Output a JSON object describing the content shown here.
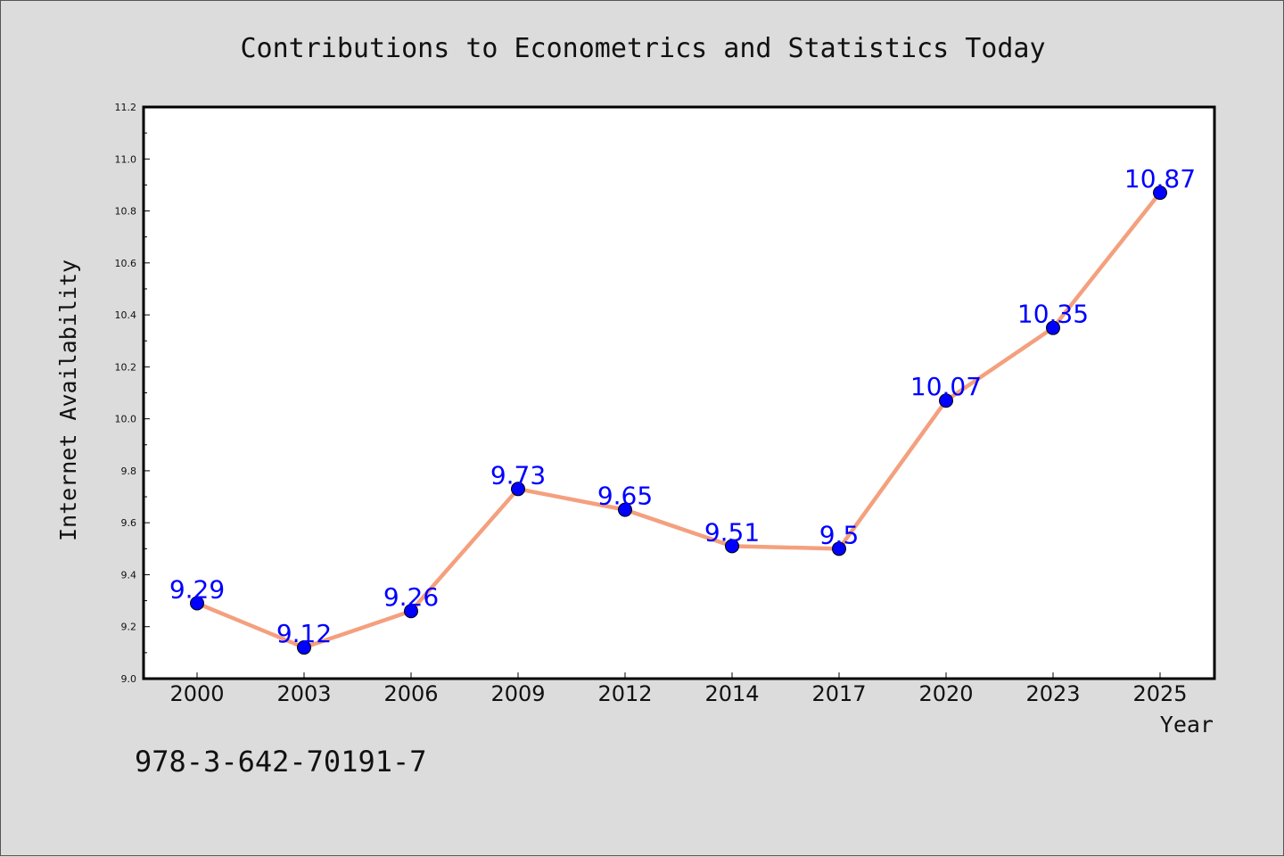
{
  "chart_data": {
    "type": "line",
    "title": "Contributions to Econometrics and Statistics Today",
    "xlabel": "Year",
    "ylabel": "Internet Availability",
    "categories": [
      "2000",
      "2003",
      "2006",
      "2009",
      "2012",
      "2014",
      "2017",
      "2020",
      "2023",
      "2025"
    ],
    "series": [
      {
        "values": [
          9.29,
          9.12,
          9.26,
          9.73,
          9.65,
          9.51,
          9.5,
          10.07,
          10.35,
          10.87
        ]
      }
    ],
    "data_labels": [
      "9.29",
      "9.12",
      "9.26",
      "9.73",
      "9.65",
      "9.51",
      "9.5",
      "10.07",
      "10.35",
      "10.87"
    ],
    "ylim": [
      9.0,
      11.2
    ],
    "yticks": [
      "9.0",
      "9.2",
      "9.4",
      "9.6",
      "9.8",
      "10.0",
      "10.2",
      "10.4",
      "10.6",
      "10.8",
      "11.0",
      "11.2"
    ],
    "grid": false,
    "legend": "none",
    "annotation": "978-3-642-70191-7",
    "colors": {
      "line": "#f4a07e",
      "marker": "#0000ff",
      "data_label": "#0000ff",
      "background": "#dcdcdc",
      "plot_background": "#ffffff"
    }
  }
}
